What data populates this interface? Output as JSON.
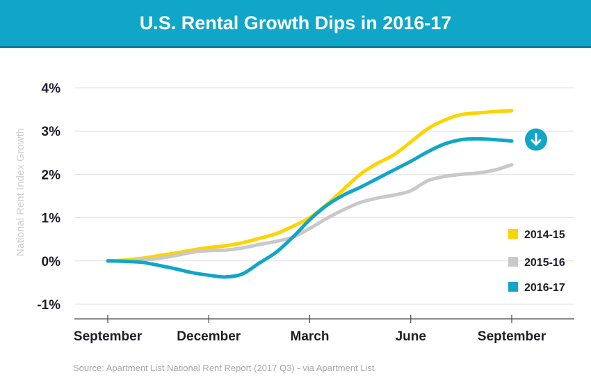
{
  "chart_data": {
    "type": "line",
    "title": "U.S. Rental Growth Dips in 2016-17",
    "ylabel": "National Rent Index Growth",
    "xlabel": "",
    "x_index": [
      0,
      0.5,
      1,
      1.5,
      2,
      2.5,
      3,
      3.5,
      4,
      4.5,
      5,
      5.5,
      6,
      6.5,
      7,
      7.5,
      8,
      8.5,
      9,
      9.5,
      10,
      10.5,
      11,
      11.5,
      12
    ],
    "x_ticks": [
      {
        "at": 0,
        "label": "September"
      },
      {
        "at": 3,
        "label": "December"
      },
      {
        "at": 6,
        "label": "March"
      },
      {
        "at": 9,
        "label": "June"
      },
      {
        "at": 12,
        "label": "September"
      }
    ],
    "y_ticks": [
      {
        "value": 4,
        "label": "4%"
      },
      {
        "value": 3,
        "label": "3%"
      },
      {
        "value": 2,
        "label": "2%"
      },
      {
        "value": 1,
        "label": "1%"
      },
      {
        "value": 0,
        "label": "0%"
      },
      {
        "value": -1,
        "label": "-1%"
      }
    ],
    "ylim": [
      -1,
      4
    ],
    "xlim": [
      0,
      12
    ],
    "series": [
      {
        "name": "2014-15",
        "color": "#fcd400",
        "values": [
          0,
          0.02,
          0.06,
          0.12,
          0.18,
          0.25,
          0.31,
          0.35,
          0.42,
          0.52,
          0.63,
          0.8,
          1.0,
          1.3,
          1.65,
          2.0,
          2.25,
          2.45,
          2.75,
          3.05,
          3.25,
          3.38,
          3.42,
          3.45,
          3.47
        ]
      },
      {
        "name": "2015-16",
        "color": "#c9c9c9",
        "values": [
          0,
          0.0,
          0.02,
          0.06,
          0.12,
          0.2,
          0.24,
          0.25,
          0.3,
          0.38,
          0.45,
          0.55,
          0.75,
          0.98,
          1.18,
          1.35,
          1.45,
          1.52,
          1.62,
          1.85,
          1.95,
          2.0,
          2.03,
          2.1,
          2.22
        ]
      },
      {
        "name": "2016-17",
        "color": "#10a6c8",
        "values": [
          0,
          -0.01,
          -0.03,
          -0.1,
          -0.18,
          -0.27,
          -0.33,
          -0.37,
          -0.3,
          -0.05,
          0.2,
          0.55,
          0.95,
          1.28,
          1.52,
          1.7,
          1.9,
          2.1,
          2.3,
          2.52,
          2.7,
          2.8,
          2.82,
          2.8,
          2.77
        ]
      }
    ],
    "legend": {
      "placement": "right",
      "entries": [
        "2014-15",
        "2015-16",
        "2016-17"
      ]
    },
    "annotation": {
      "type": "down-arrow-badge",
      "series": "2016-17",
      "color": "#10a6c8"
    },
    "grid": true
  },
  "source_text": "Source: Apartment List National Rent Report (2017 Q3) - via Apartment List",
  "colors": {
    "header": "#10a6c8",
    "grid": "#e0e0e0",
    "axis": "#444444"
  }
}
